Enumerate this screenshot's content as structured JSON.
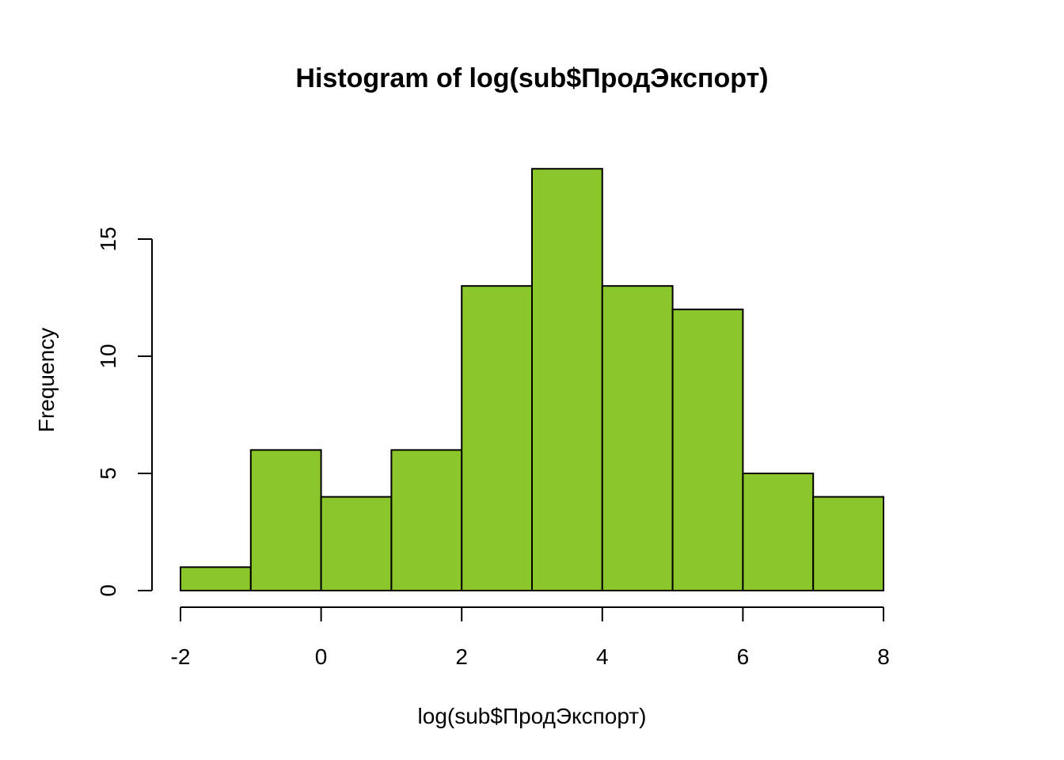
{
  "chart_data": {
    "type": "bar",
    "title": "Histogram of log(sub$ПродЭкспорт)",
    "xlabel": "log(sub$ПродЭкспорт)",
    "ylabel": "Frequency",
    "bins": [
      {
        "start": -2,
        "end": -1,
        "count": 1
      },
      {
        "start": -1,
        "end": 0,
        "count": 6
      },
      {
        "start": 0,
        "end": 1,
        "count": 4
      },
      {
        "start": 1,
        "end": 2,
        "count": 6
      },
      {
        "start": 2,
        "end": 3,
        "count": 13
      },
      {
        "start": 3,
        "end": 4,
        "count": 18
      },
      {
        "start": 4,
        "end": 5,
        "count": 13
      },
      {
        "start": 5,
        "end": 6,
        "count": 12
      },
      {
        "start": 6,
        "end": 7,
        "count": 5
      },
      {
        "start": 7,
        "end": 8,
        "count": 4
      }
    ],
    "xticks": [
      -2,
      0,
      2,
      4,
      6,
      8
    ],
    "xtick_labels": [
      "-2",
      "0",
      "2",
      "4",
      "6",
      "8"
    ],
    "yticks": [
      0,
      5,
      10,
      15
    ],
    "ytick_labels": [
      "0",
      "5",
      "10",
      "15"
    ],
    "xlim": [
      -2,
      8
    ],
    "ylim": [
      0,
      18
    ],
    "grid": false,
    "colors": {
      "bar_fill": "#8bc72a",
      "bar_stroke": "#000000"
    }
  }
}
